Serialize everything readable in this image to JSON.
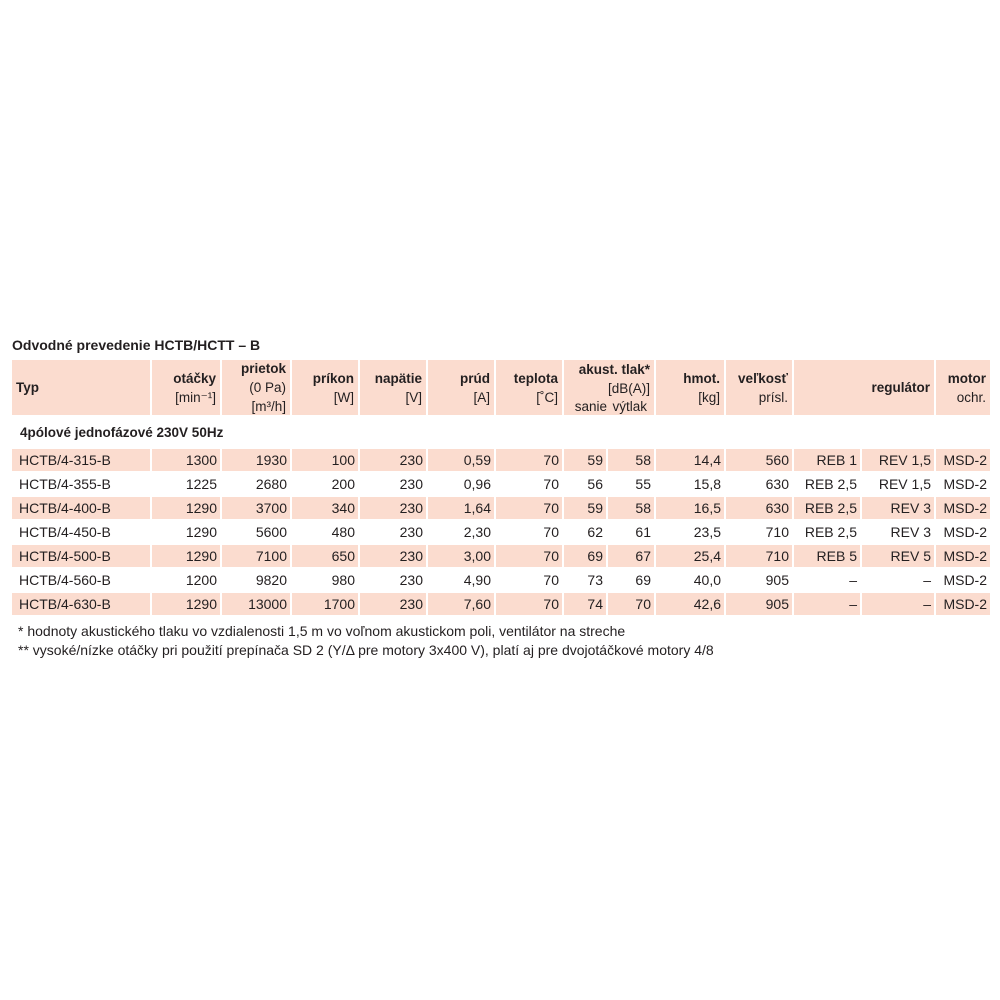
{
  "title": "Odvodné prevedenie HCTB/HCTT – B",
  "table": {
    "header": [
      {
        "lines": [
          "Typ"
        ]
      },
      {
        "lines": [
          "otáčky",
          "[min⁻¹]"
        ]
      },
      {
        "lines": [
          "prietok",
          "(0 Pa)",
          "[m³/h]"
        ]
      },
      {
        "lines": [
          "príkon",
          "[W]"
        ]
      },
      {
        "lines": [
          "napätie",
          "[V]"
        ]
      },
      {
        "lines": [
          "prúd",
          "[A]"
        ]
      },
      {
        "lines": [
          "teplota",
          "[˚C]"
        ]
      },
      {
        "lines": [
          "akust. tlak*",
          "[dB(A)]"
        ]
      },
      {
        "lines": [
          "hmot.",
          "[kg]"
        ]
      },
      {
        "lines": [
          "veľkosť",
          "prísl."
        ]
      },
      {
        "lines": [
          "regulátor"
        ]
      },
      {
        "lines": [
          "motor",
          "ochr."
        ]
      }
    ],
    "subheader": [
      "sanie",
      "výtlak"
    ],
    "section": "4pólové jednofázové 230V 50Hz",
    "rows": [
      [
        "HCTB/4-315-B",
        "1300",
        "1930",
        "100",
        "230",
        "0,59",
        "70",
        "59",
        "58",
        "14,4",
        "560",
        "REB 1",
        "REV 1,5",
        "MSD-2"
      ],
      [
        "HCTB/4-355-B",
        "1225",
        "2680",
        "200",
        "230",
        "0,96",
        "70",
        "56",
        "55",
        "15,8",
        "630",
        "REB 2,5",
        "REV 1,5",
        "MSD-2"
      ],
      [
        "HCTB/4-400-B",
        "1290",
        "3700",
        "340",
        "230",
        "1,64",
        "70",
        "59",
        "58",
        "16,5",
        "630",
        "REB 2,5",
        "REV 3",
        "MSD-2"
      ],
      [
        "HCTB/4-450-B",
        "1290",
        "5600",
        "480",
        "230",
        "2,30",
        "70",
        "62",
        "61",
        "23,5",
        "710",
        "REB 2,5",
        "REV 3",
        "MSD-2"
      ],
      [
        "HCTB/4-500-B",
        "1290",
        "7100",
        "650",
        "230",
        "3,00",
        "70",
        "69",
        "67",
        "25,4",
        "710",
        "REB 5",
        "REV 5",
        "MSD-2"
      ],
      [
        "HCTB/4-560-B",
        "1200",
        "9820",
        "980",
        "230",
        "4,90",
        "70",
        "73",
        "69",
        "40,0",
        "905",
        "–",
        "–",
        "MSD-2"
      ],
      [
        "HCTB/4-630-B",
        "1290",
        "13000",
        "1700",
        "230",
        "7,60",
        "70",
        "74",
        "70",
        "42,6",
        "905",
        "–",
        "–",
        "MSD-2"
      ]
    ]
  },
  "footnotes": [
    "* hodnoty akustického tlaku vo vzdialenosti 1,5 m vo voľnom akustickom poli, ventilátor na streche",
    "** vysoké/nízke otáčky pri použití prepínača SD 2 (Y/Δ pre motory 3x400 V), platí aj pre dvojotáčkové motory 4/8"
  ]
}
